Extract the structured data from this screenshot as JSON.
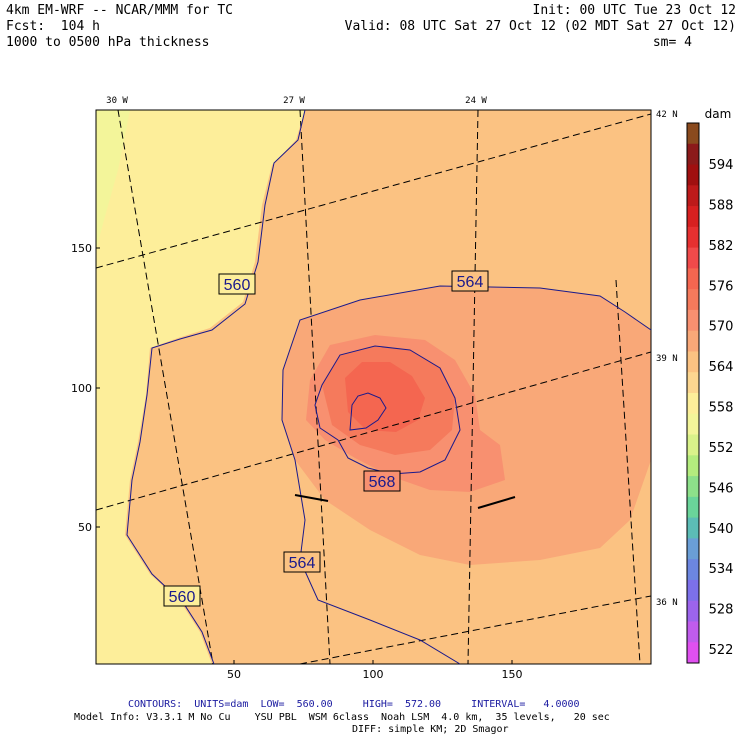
{
  "header": {
    "model_title": "4km EM-WRF -- NCAR/MMM for TC",
    "forecast": "Fcst:  104 h",
    "field": "1000 to 0500 hPa thickness",
    "init": "Init: 00 UTC Tue 23 Oct 12",
    "valid": "Valid: 08 UTC Sat 27 Oct 12 (02 MDT Sat 27 Oct 12)",
    "smoothing": "sm= 4"
  },
  "map": {
    "lon_labels": [
      "30 W",
      "27 W",
      "24 W"
    ],
    "lat_labels": [
      "42 N",
      "39 N",
      "36 N"
    ],
    "y_ticks": [
      "150",
      "100",
      "50"
    ],
    "x_ticks": [
      "50",
      "100",
      "150"
    ],
    "contour_labels": [
      "560",
      "564",
      "568",
      "564",
      "560"
    ]
  },
  "colorbar": {
    "unit": "dam",
    "labels": [
      "594",
      "588",
      "582",
      "576",
      "570",
      "564",
      "558",
      "552",
      "546",
      "540",
      "534",
      "528",
      "522"
    ],
    "colors": [
      "#8a4a1e",
      "#8b1a1a",
      "#a01010",
      "#bd1a1a",
      "#d72020",
      "#e63030",
      "#f04a4a",
      "#f46650",
      "#f57a5c",
      "#f89070",
      "#f9a878",
      "#fbc282",
      "#fcd690",
      "#fdee9a",
      "#f3f59a",
      "#d9f28a",
      "#b4ec7e",
      "#8de08a",
      "#6ad49a",
      "#5cbcb6",
      "#6a9ed6",
      "#6c86e0",
      "#7c70ea",
      "#9c64ec",
      "#c05cec",
      "#e050f0"
    ]
  },
  "footer": {
    "contours": "CONTOURS:  UNITS=dam  LOW=  560.00     HIGH=  572.00     INTERVAL=   4.0000",
    "model_info": "Model Info: V3.3.1 M No Cu    YSU PBL  WSM 6class  Noah LSM  4.0 km,  35 levels,   20 sec",
    "diff": "DIFF: simple KM; 2D Smagor"
  }
}
